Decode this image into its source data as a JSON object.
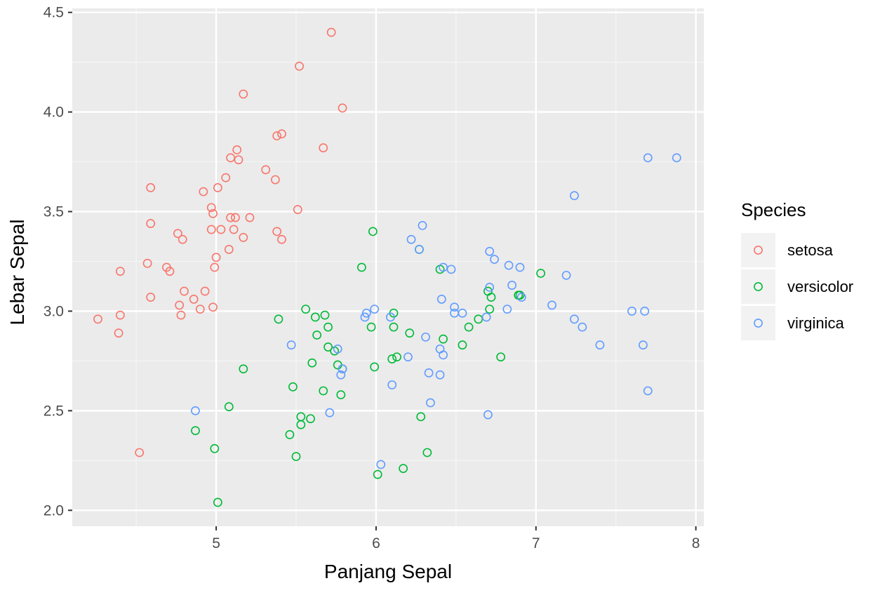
{
  "chart_data": {
    "type": "scatter",
    "xlabel": "Panjang Sepal",
    "ylabel": "Lebar Sepal",
    "xlim": [
      4.1,
      8.05
    ],
    "ylim": [
      1.92,
      4.52
    ],
    "x_ticks": [
      5,
      6,
      7,
      8
    ],
    "x_tick_labels": [
      "5",
      "6",
      "7",
      "8"
    ],
    "y_ticks": [
      2.0,
      2.5,
      3.0,
      3.5,
      4.0,
      4.5
    ],
    "y_tick_labels": [
      "2.0",
      "2.5",
      "3.0",
      "3.5",
      "4.0",
      "4.5"
    ],
    "grid": true,
    "legend": {
      "title": "Species",
      "position": "right"
    },
    "marker": "open-circle",
    "series": [
      {
        "name": "setosa",
        "color": "#F8766D",
        "points": [
          [
            5.72,
            4.4
          ],
          [
            5.52,
            4.23
          ],
          [
            5.17,
            4.09
          ],
          [
            5.79,
            4.02
          ],
          [
            5.41,
            3.89
          ],
          [
            5.38,
            3.88
          ],
          [
            5.13,
            3.81
          ],
          [
            5.67,
            3.82
          ],
          [
            5.09,
            3.77
          ],
          [
            5.14,
            3.76
          ],
          [
            5.31,
            3.71
          ],
          [
            5.06,
            3.67
          ],
          [
            5.37,
            3.66
          ],
          [
            5.01,
            3.62
          ],
          [
            4.59,
            3.62
          ],
          [
            4.92,
            3.6
          ],
          [
            4.97,
            3.52
          ],
          [
            5.51,
            3.51
          ],
          [
            4.98,
            3.49
          ],
          [
            5.09,
            3.47
          ],
          [
            5.12,
            3.47
          ],
          [
            5.21,
            3.47
          ],
          [
            4.59,
            3.44
          ],
          [
            4.97,
            3.41
          ],
          [
            5.03,
            3.41
          ],
          [
            5.11,
            3.41
          ],
          [
            5.38,
            3.4
          ],
          [
            4.76,
            3.39
          ],
          [
            5.17,
            3.37
          ],
          [
            4.79,
            3.36
          ],
          [
            5.41,
            3.36
          ],
          [
            5.08,
            3.31
          ],
          [
            5.0,
            3.27
          ],
          [
            4.57,
            3.24
          ],
          [
            4.69,
            3.22
          ],
          [
            4.99,
            3.22
          ],
          [
            4.71,
            3.2
          ],
          [
            4.4,
            3.2
          ],
          [
            4.8,
            3.1
          ],
          [
            4.93,
            3.1
          ],
          [
            4.59,
            3.07
          ],
          [
            4.86,
            3.06
          ],
          [
            4.77,
            3.03
          ],
          [
            4.98,
            3.02
          ],
          [
            4.9,
            3.01
          ],
          [
            4.78,
            2.98
          ],
          [
            4.4,
            2.98
          ],
          [
            4.26,
            2.96
          ],
          [
            4.39,
            2.89
          ],
          [
            4.52,
            2.29
          ]
        ]
      },
      {
        "name": "versicolor",
        "color": "#00BA38",
        "points": [
          [
            5.98,
            3.4
          ],
          [
            5.91,
            3.22
          ],
          [
            7.03,
            3.19
          ],
          [
            6.7,
            3.1
          ],
          [
            6.72,
            3.07
          ],
          [
            6.89,
            3.08
          ],
          [
            6.9,
            3.08
          ],
          [
            6.71,
            3.01
          ],
          [
            5.56,
            3.01
          ],
          [
            6.11,
            2.99
          ],
          [
            5.68,
            2.98
          ],
          [
            5.62,
            2.97
          ],
          [
            6.64,
            2.96
          ],
          [
            5.39,
            2.96
          ],
          [
            5.7,
            2.92
          ],
          [
            5.97,
            2.92
          ],
          [
            6.11,
            2.92
          ],
          [
            6.58,
            2.92
          ],
          [
            6.21,
            2.89
          ],
          [
            5.63,
            2.88
          ],
          [
            6.42,
            2.86
          ],
          [
            6.54,
            2.83
          ],
          [
            5.7,
            2.82
          ],
          [
            5.74,
            2.8
          ],
          [
            6.78,
            2.77
          ],
          [
            6.13,
            2.77
          ],
          [
            6.1,
            2.76
          ],
          [
            5.6,
            2.74
          ],
          [
            5.76,
            2.73
          ],
          [
            5.79,
            2.71
          ],
          [
            5.99,
            2.72
          ],
          [
            5.17,
            2.71
          ],
          [
            5.48,
            2.62
          ],
          [
            5.67,
            2.6
          ],
          [
            5.78,
            2.58
          ],
          [
            5.08,
            2.52
          ],
          [
            5.53,
            2.47
          ],
          [
            5.59,
            2.46
          ],
          [
            6.28,
            2.47
          ],
          [
            5.53,
            2.43
          ],
          [
            4.87,
            2.4
          ],
          [
            5.46,
            2.38
          ],
          [
            4.99,
            2.31
          ],
          [
            6.32,
            2.29
          ],
          [
            5.5,
            2.27
          ],
          [
            6.17,
            2.21
          ],
          [
            6.01,
            2.18
          ],
          [
            5.01,
            2.04
          ],
          [
            6.27,
            3.31
          ],
          [
            6.4,
            3.21
          ]
        ]
      },
      {
        "name": "virginica",
        "color": "#619CFF",
        "points": [
          [
            7.7,
            3.77
          ],
          [
            7.88,
            3.77
          ],
          [
            7.24,
            3.58
          ],
          [
            6.29,
            3.43
          ],
          [
            6.22,
            3.36
          ],
          [
            6.27,
            3.31
          ],
          [
            6.71,
            3.3
          ],
          [
            6.74,
            3.26
          ],
          [
            6.83,
            3.23
          ],
          [
            6.9,
            3.22
          ],
          [
            6.42,
            3.22
          ],
          [
            6.47,
            3.21
          ],
          [
            7.19,
            3.18
          ],
          [
            6.85,
            3.13
          ],
          [
            6.71,
            3.12
          ],
          [
            6.91,
            3.07
          ],
          [
            6.41,
            3.06
          ],
          [
            7.1,
            3.03
          ],
          [
            6.49,
            3.02
          ],
          [
            5.99,
            3.01
          ],
          [
            7.6,
            3.0
          ],
          [
            7.68,
            3.0
          ],
          [
            6.82,
            3.01
          ],
          [
            5.94,
            2.99
          ],
          [
            6.49,
            2.99
          ],
          [
            6.54,
            2.99
          ],
          [
            5.93,
            2.97
          ],
          [
            6.09,
            2.97
          ],
          [
            6.69,
            2.97
          ],
          [
            7.24,
            2.96
          ],
          [
            7.29,
            2.92
          ],
          [
            6.31,
            2.87
          ],
          [
            5.76,
            2.81
          ],
          [
            6.4,
            2.81
          ],
          [
            6.42,
            2.78
          ],
          [
            6.2,
            2.77
          ],
          [
            5.79,
            2.71
          ],
          [
            5.78,
            2.68
          ],
          [
            6.33,
            2.69
          ],
          [
            6.4,
            2.68
          ],
          [
            6.1,
            2.63
          ],
          [
            7.7,
            2.6
          ],
          [
            6.34,
            2.54
          ],
          [
            4.87,
            2.5
          ],
          [
            5.71,
            2.49
          ],
          [
            6.7,
            2.48
          ],
          [
            6.03,
            2.23
          ],
          [
            7.4,
            2.83
          ],
          [
            7.67,
            2.83
          ],
          [
            5.47,
            2.83
          ]
        ]
      }
    ]
  }
}
